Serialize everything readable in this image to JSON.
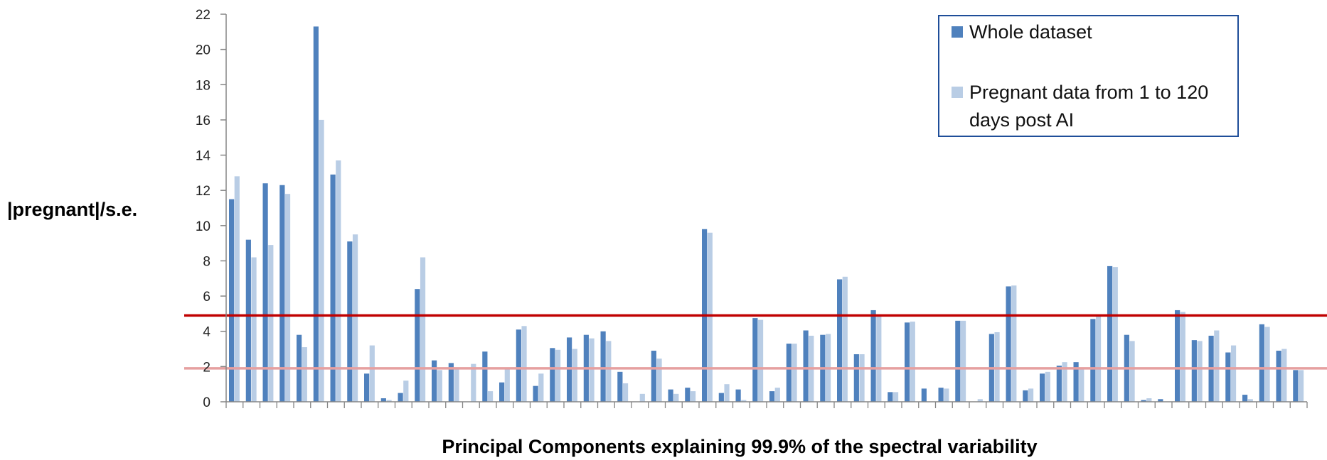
{
  "chart_data": {
    "type": "bar",
    "title": "",
    "xlabel": "Principal Components explaining 99.9% of the spectral variability",
    "ylabel": "|pregnant|/s.e.",
    "ylim": [
      0,
      22
    ],
    "yticks": [
      0,
      2,
      4,
      6,
      8,
      10,
      12,
      14,
      16,
      18,
      20,
      22
    ],
    "grid": false,
    "legend_position": "top-right",
    "legend_lines": [
      [
        "Whole dataset"
      ],
      [
        "Pregnant data from 1 to 120",
        "days post AI"
      ]
    ],
    "series": [
      {
        "name": "Whole dataset",
        "color": "#4f81bd",
        "values": [
          11.5,
          9.2,
          12.4,
          12.3,
          3.8,
          21.3,
          12.9,
          9.1,
          1.6,
          0.2,
          0.5,
          6.4,
          2.35,
          2.2,
          0,
          2.85,
          1.1,
          4.1,
          0.9,
          3.05,
          3.65,
          3.8,
          4.0,
          1.7,
          0,
          2.9,
          0.7,
          0.8,
          9.8,
          0.5,
          0.7,
          4.75,
          0.6,
          3.3,
          4.05,
          3.8,
          6.95,
          2.7,
          5.2,
          0.55,
          4.5,
          0.75,
          0.8,
          4.6,
          0,
          3.85,
          6.55,
          0.65,
          1.6,
          2.05,
          2.25,
          4.7,
          7.7,
          3.8,
          0.1,
          0.15,
          5.2,
          3.5,
          3.75,
          2.8,
          0.4,
          4.4,
          2.9,
          1.8
        ]
      },
      {
        "name": "Pregnant data from 1 to 120 days post AI",
        "color": "#b9cde5",
        "values": [
          12.8,
          8.2,
          8.9,
          11.8,
          3.1,
          16.0,
          13.7,
          9.5,
          3.2,
          0.1,
          1.2,
          8.2,
          1.8,
          1.9,
          2.15,
          0.6,
          1.9,
          4.3,
          1.6,
          2.95,
          3.0,
          3.6,
          3.45,
          1.05,
          0.45,
          2.45,
          0.45,
          0.6,
          9.6,
          1.0,
          0.1,
          4.65,
          0.8,
          3.3,
          3.75,
          3.85,
          7.1,
          2.7,
          4.9,
          0.55,
          4.55,
          0,
          0.75,
          4.6,
          0.15,
          3.95,
          6.6,
          0.75,
          1.7,
          2.25,
          1.95,
          4.85,
          7.65,
          3.45,
          0.2,
          0,
          5.1,
          3.45,
          4.05,
          3.2,
          0.15,
          4.25,
          3.0,
          1.8
        ]
      }
    ],
    "reference_lines": [
      {
        "value": 4.9,
        "color": "#c00000"
      },
      {
        "value": 1.9,
        "color": "#e6a0a0"
      }
    ]
  }
}
